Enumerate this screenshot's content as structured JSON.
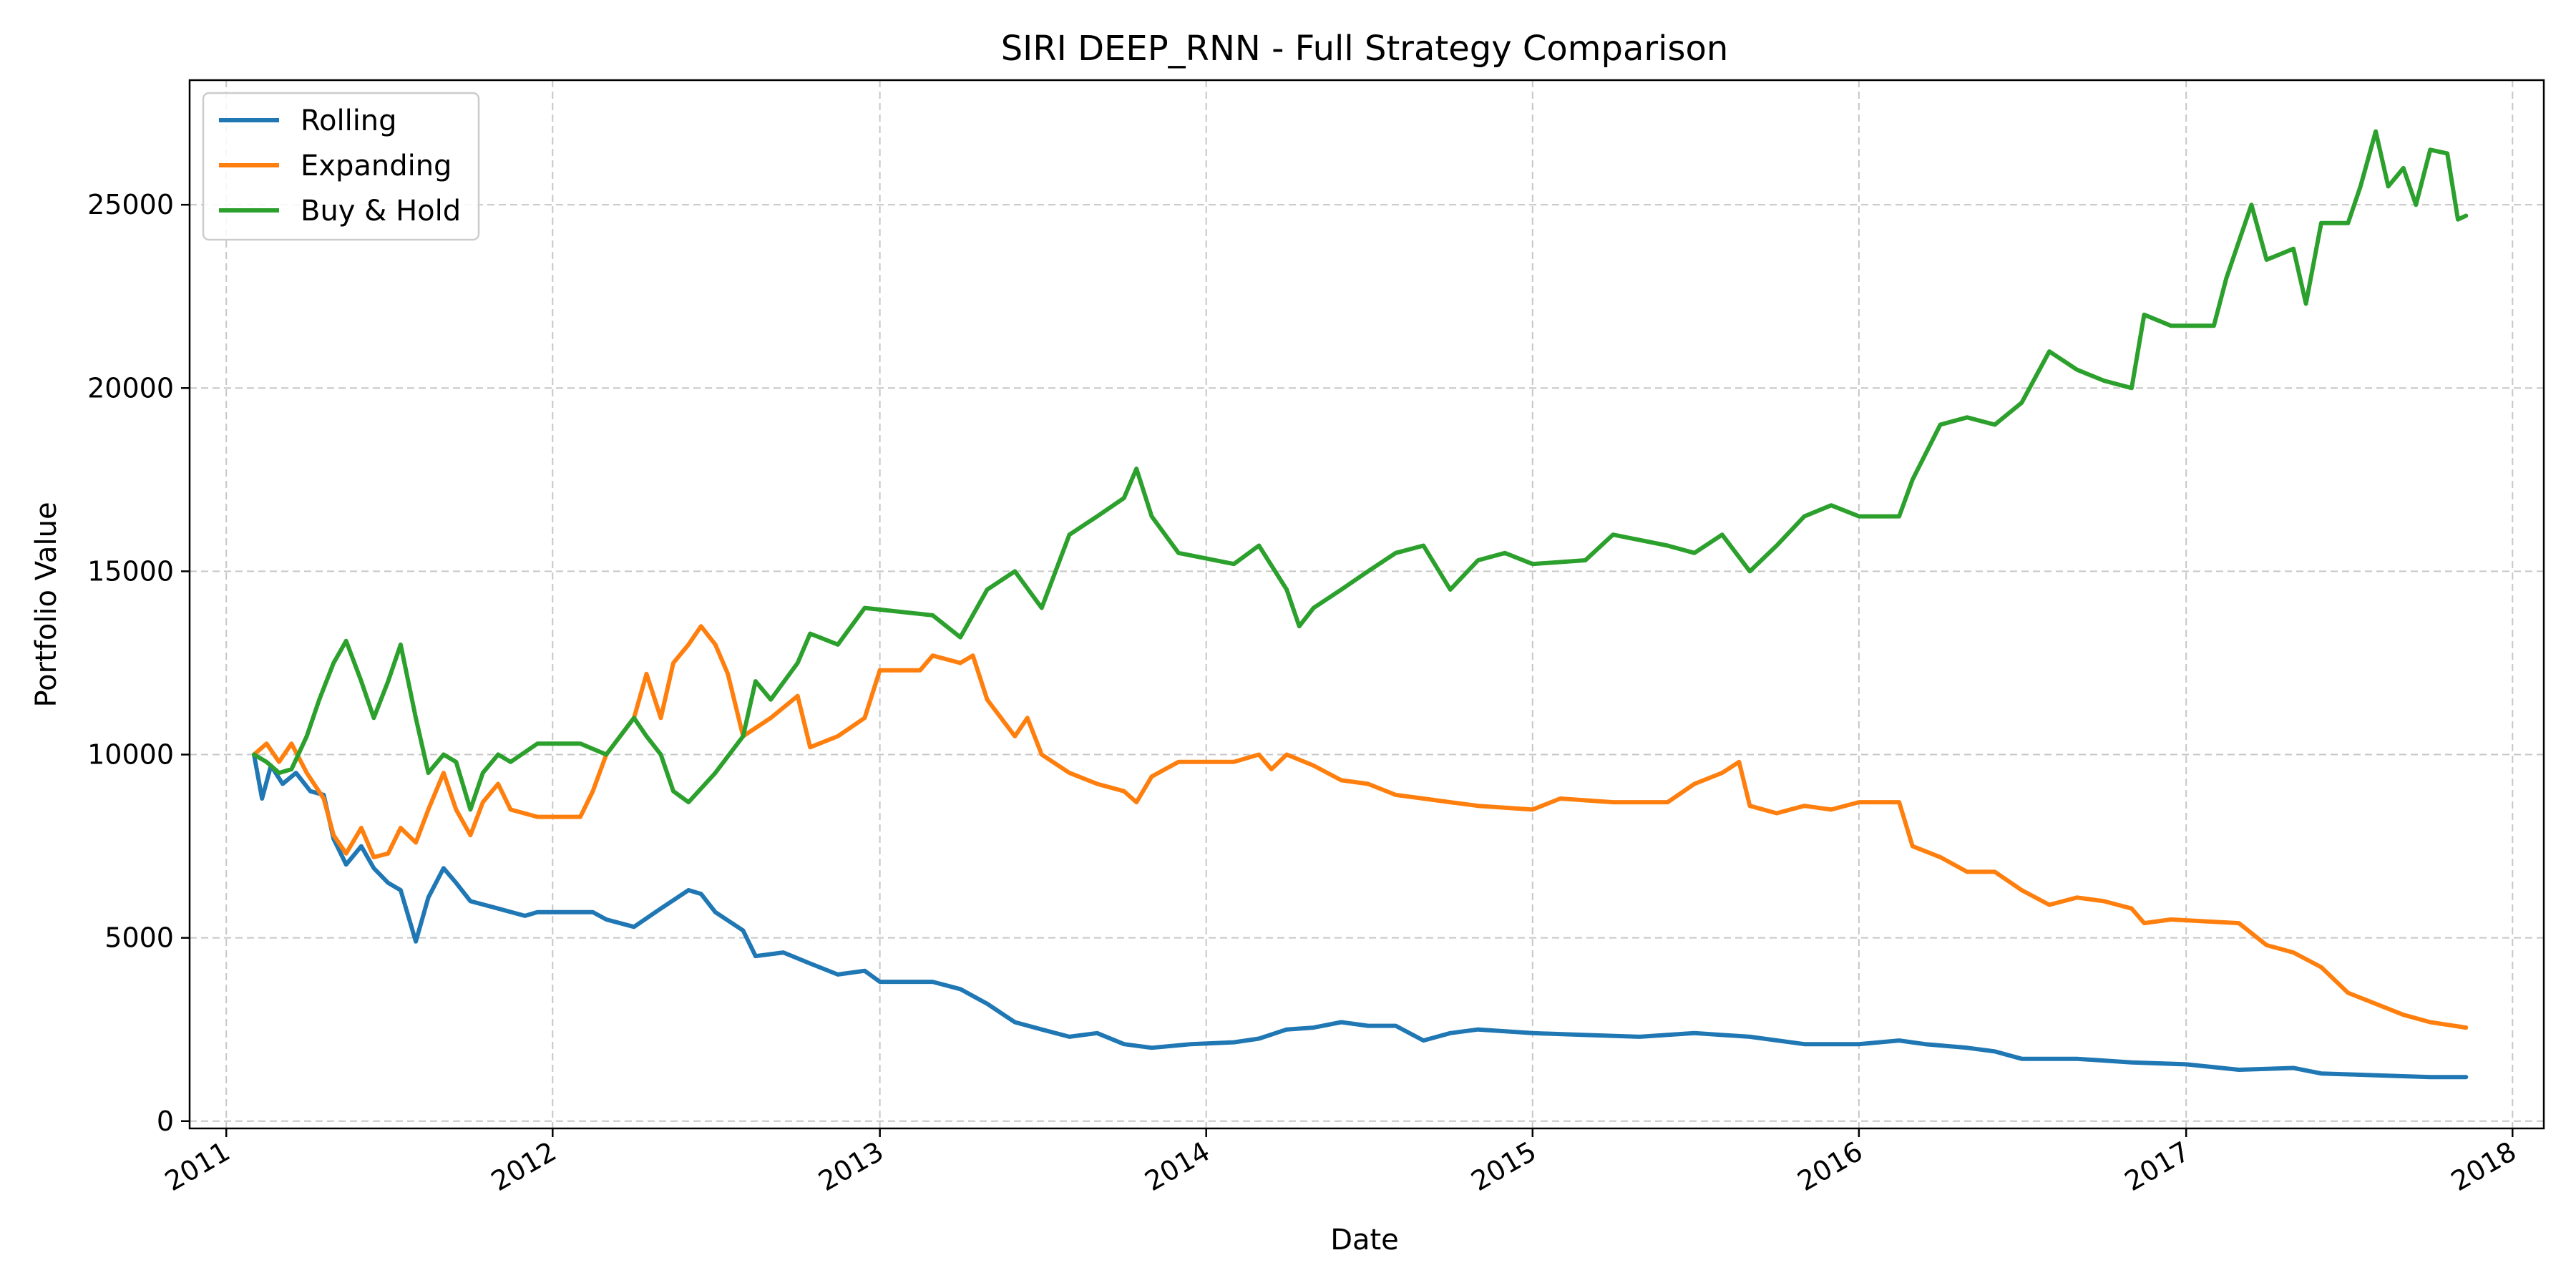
{
  "chart_data": {
    "type": "line",
    "title": "SIRI DEEP_RNN - Full Strategy Comparison",
    "xlabel": "Date",
    "ylabel": "Portfolio Value",
    "x_tick_labels": [
      "2011",
      "2012",
      "2013",
      "2014",
      "2015",
      "2016",
      "2017",
      "2018"
    ],
    "y_tick_labels": [
      "0",
      "5000",
      "10000",
      "15000",
      "20000",
      "25000"
    ],
    "y_ticks": [
      0,
      5000,
      10000,
      15000,
      20000,
      25000
    ],
    "xlim": [
      "2010-11-21",
      "2018-02-05"
    ],
    "ylim": [
      -200,
      28400
    ],
    "grid": true,
    "legend_position": "top-left",
    "series": [
      {
        "name": "Rolling",
        "color": "#1f77b4",
        "points": [
          [
            "2011-02-01",
            10000
          ],
          [
            "2011-02-10",
            8800
          ],
          [
            "2011-02-20",
            9700
          ],
          [
            "2011-03-05",
            9200
          ],
          [
            "2011-03-20",
            9500
          ],
          [
            "2011-04-05",
            9000
          ],
          [
            "2011-04-20",
            8900
          ],
          [
            "2011-05-01",
            7700
          ],
          [
            "2011-05-15",
            7000
          ],
          [
            "2011-06-01",
            7500
          ],
          [
            "2011-06-15",
            6900
          ],
          [
            "2011-07-01",
            6500
          ],
          [
            "2011-07-15",
            6300
          ],
          [
            "2011-08-01",
            4900
          ],
          [
            "2011-08-15",
            6100
          ],
          [
            "2011-09-01",
            6900
          ],
          [
            "2011-09-15",
            6500
          ],
          [
            "2011-10-01",
            6000
          ],
          [
            "2011-11-01",
            5800
          ],
          [
            "2011-12-01",
            5600
          ],
          [
            "2011-12-15",
            5700
          ],
          [
            "2012-02-15",
            5700
          ],
          [
            "2012-03-01",
            5500
          ],
          [
            "2012-04-01",
            5300
          ],
          [
            "2012-05-01",
            5800
          ],
          [
            "2012-06-01",
            6300
          ],
          [
            "2012-06-15",
            6200
          ],
          [
            "2012-07-01",
            5700
          ],
          [
            "2012-08-01",
            5200
          ],
          [
            "2012-08-15",
            4500
          ],
          [
            "2012-09-15",
            4600
          ],
          [
            "2012-10-15",
            4300
          ],
          [
            "2012-11-15",
            4000
          ],
          [
            "2012-12-15",
            4100
          ],
          [
            "2013-01-01",
            3800
          ],
          [
            "2013-03-01",
            3800
          ],
          [
            "2013-04-01",
            3600
          ],
          [
            "2013-05-01",
            3200
          ],
          [
            "2013-06-01",
            2700
          ],
          [
            "2013-07-01",
            2500
          ],
          [
            "2013-08-01",
            2300
          ],
          [
            "2013-09-01",
            2400
          ],
          [
            "2013-10-01",
            2100
          ],
          [
            "2013-11-01",
            2000
          ],
          [
            "2013-12-15",
            2100
          ],
          [
            "2014-02-01",
            2150
          ],
          [
            "2014-03-01",
            2250
          ],
          [
            "2014-04-01",
            2500
          ],
          [
            "2014-05-01",
            2550
          ],
          [
            "2014-06-01",
            2700
          ],
          [
            "2014-07-01",
            2600
          ],
          [
            "2014-08-01",
            2600
          ],
          [
            "2014-09-01",
            2200
          ],
          [
            "2014-10-01",
            2400
          ],
          [
            "2014-11-01",
            2500
          ],
          [
            "2015-01-01",
            2400
          ],
          [
            "2015-03-01",
            2350
          ],
          [
            "2015-05-01",
            2300
          ],
          [
            "2015-07-01",
            2400
          ],
          [
            "2015-09-01",
            2300
          ],
          [
            "2015-11-01",
            2100
          ],
          [
            "2016-01-01",
            2100
          ],
          [
            "2016-02-15",
            2200
          ],
          [
            "2016-03-15",
            2100
          ],
          [
            "2016-05-01",
            2000
          ],
          [
            "2016-06-01",
            1900
          ],
          [
            "2016-07-01",
            1700
          ],
          [
            "2016-09-01",
            1700
          ],
          [
            "2016-11-01",
            1600
          ],
          [
            "2017-01-01",
            1550
          ],
          [
            "2017-03-01",
            1400
          ],
          [
            "2017-05-01",
            1450
          ],
          [
            "2017-06-01",
            1300
          ],
          [
            "2017-08-01",
            1250
          ],
          [
            "2017-10-01",
            1200
          ],
          [
            "2017-11-10",
            1200
          ]
        ]
      },
      {
        "name": "Expanding",
        "color": "#ff7f0e",
        "points": [
          [
            "2011-02-01",
            10000
          ],
          [
            "2011-02-15",
            10300
          ],
          [
            "2011-03-01",
            9800
          ],
          [
            "2011-03-15",
            10300
          ],
          [
            "2011-04-01",
            9500
          ],
          [
            "2011-04-20",
            8800
          ],
          [
            "2011-05-01",
            7800
          ],
          [
            "2011-05-15",
            7300
          ],
          [
            "2011-06-01",
            8000
          ],
          [
            "2011-06-15",
            7200
          ],
          [
            "2011-07-01",
            7300
          ],
          [
            "2011-07-15",
            8000
          ],
          [
            "2011-08-01",
            7600
          ],
          [
            "2011-08-15",
            8500
          ],
          [
            "2011-09-01",
            9500
          ],
          [
            "2011-09-15",
            8500
          ],
          [
            "2011-10-01",
            7800
          ],
          [
            "2011-10-15",
            8700
          ],
          [
            "2011-11-01",
            9200
          ],
          [
            "2011-11-15",
            8500
          ],
          [
            "2011-12-15",
            8300
          ],
          [
            "2012-02-01",
            8300
          ],
          [
            "2012-02-15",
            9000
          ],
          [
            "2012-03-01",
            10000
          ],
          [
            "2012-04-01",
            11000
          ],
          [
            "2012-04-15",
            12200
          ],
          [
            "2012-05-01",
            11000
          ],
          [
            "2012-05-15",
            12500
          ],
          [
            "2012-06-01",
            13000
          ],
          [
            "2012-06-15",
            13500
          ],
          [
            "2012-07-01",
            13000
          ],
          [
            "2012-07-15",
            12200
          ],
          [
            "2012-08-01",
            10500
          ],
          [
            "2012-09-01",
            11000
          ],
          [
            "2012-10-01",
            11600
          ],
          [
            "2012-10-15",
            10200
          ],
          [
            "2012-11-15",
            10500
          ],
          [
            "2012-12-15",
            11000
          ],
          [
            "2013-01-01",
            12300
          ],
          [
            "2013-02-15",
            12300
          ],
          [
            "2013-03-01",
            12700
          ],
          [
            "2013-04-01",
            12500
          ],
          [
            "2013-04-15",
            12700
          ],
          [
            "2013-05-01",
            11500
          ],
          [
            "2013-06-01",
            10500
          ],
          [
            "2013-06-15",
            11000
          ],
          [
            "2013-07-01",
            10000
          ],
          [
            "2013-08-01",
            9500
          ],
          [
            "2013-09-01",
            9200
          ],
          [
            "2013-10-01",
            9000
          ],
          [
            "2013-10-15",
            8700
          ],
          [
            "2013-11-01",
            9400
          ],
          [
            "2013-12-01",
            9800
          ],
          [
            "2014-02-01",
            9800
          ],
          [
            "2014-03-01",
            10000
          ],
          [
            "2014-03-15",
            9600
          ],
          [
            "2014-04-01",
            10000
          ],
          [
            "2014-05-01",
            9700
          ],
          [
            "2014-06-01",
            9300
          ],
          [
            "2014-07-01",
            9200
          ],
          [
            "2014-08-01",
            8900
          ],
          [
            "2014-09-01",
            8800
          ],
          [
            "2014-10-01",
            8700
          ],
          [
            "2014-11-01",
            8600
          ],
          [
            "2015-01-01",
            8500
          ],
          [
            "2015-02-01",
            8800
          ],
          [
            "2015-04-01",
            8700
          ],
          [
            "2015-06-01",
            8700
          ],
          [
            "2015-07-01",
            9200
          ],
          [
            "2015-08-01",
            9500
          ],
          [
            "2015-08-20",
            9800
          ],
          [
            "2015-09-01",
            8600
          ],
          [
            "2015-10-01",
            8400
          ],
          [
            "2015-11-01",
            8600
          ],
          [
            "2015-12-01",
            8500
          ],
          [
            "2016-01-01",
            8700
          ],
          [
            "2016-02-15",
            8700
          ],
          [
            "2016-03-01",
            7500
          ],
          [
            "2016-04-01",
            7200
          ],
          [
            "2016-05-01",
            6800
          ],
          [
            "2016-06-01",
            6800
          ],
          [
            "2016-07-01",
            6300
          ],
          [
            "2016-08-01",
            5900
          ],
          [
            "2016-09-01",
            6100
          ],
          [
            "2016-10-01",
            6000
          ],
          [
            "2016-11-01",
            5800
          ],
          [
            "2016-11-15",
            5400
          ],
          [
            "2016-12-15",
            5500
          ],
          [
            "2017-03-01",
            5400
          ],
          [
            "2017-04-01",
            4800
          ],
          [
            "2017-05-01",
            4600
          ],
          [
            "2017-06-01",
            4200
          ],
          [
            "2017-07-01",
            3500
          ],
          [
            "2017-08-01",
            3200
          ],
          [
            "2017-09-01",
            2900
          ],
          [
            "2017-10-01",
            2700
          ],
          [
            "2017-11-10",
            2550
          ]
        ]
      },
      {
        "name": "Buy & Hold",
        "color": "#2ca02c",
        "points": [
          [
            "2011-02-01",
            10000
          ],
          [
            "2011-02-15",
            9800
          ],
          [
            "2011-03-01",
            9500
          ],
          [
            "2011-03-15",
            9600
          ],
          [
            "2011-04-01",
            10500
          ],
          [
            "2011-04-15",
            11500
          ],
          [
            "2011-05-01",
            12500
          ],
          [
            "2011-05-15",
            13100
          ],
          [
            "2011-06-01",
            12000
          ],
          [
            "2011-06-15",
            11000
          ],
          [
            "2011-07-01",
            12000
          ],
          [
            "2011-07-15",
            13000
          ],
          [
            "2011-08-01",
            11000
          ],
          [
            "2011-08-15",
            9500
          ],
          [
            "2011-09-01",
            10000
          ],
          [
            "2011-09-15",
            9800
          ],
          [
            "2011-10-01",
            8500
          ],
          [
            "2011-10-15",
            9500
          ],
          [
            "2011-11-01",
            10000
          ],
          [
            "2011-11-15",
            9800
          ],
          [
            "2011-12-15",
            10300
          ],
          [
            "2012-02-01",
            10300
          ],
          [
            "2012-03-01",
            10000
          ],
          [
            "2012-04-01",
            11000
          ],
          [
            "2012-04-15",
            10500
          ],
          [
            "2012-05-01",
            10000
          ],
          [
            "2012-05-15",
            9000
          ],
          [
            "2012-06-01",
            8700
          ],
          [
            "2012-07-01",
            9500
          ],
          [
            "2012-08-01",
            10500
          ],
          [
            "2012-08-15",
            12000
          ],
          [
            "2012-09-01",
            11500
          ],
          [
            "2012-10-01",
            12500
          ],
          [
            "2012-10-15",
            13300
          ],
          [
            "2012-11-15",
            13000
          ],
          [
            "2012-12-15",
            14000
          ],
          [
            "2013-03-01",
            13800
          ],
          [
            "2013-04-01",
            13200
          ],
          [
            "2013-05-01",
            14500
          ],
          [
            "2013-06-01",
            15000
          ],
          [
            "2013-07-01",
            14000
          ],
          [
            "2013-08-01",
            16000
          ],
          [
            "2013-09-01",
            16500
          ],
          [
            "2013-10-01",
            17000
          ],
          [
            "2013-10-15",
            17800
          ],
          [
            "2013-11-01",
            16500
          ],
          [
            "2013-12-01",
            15500
          ],
          [
            "2014-02-01",
            15200
          ],
          [
            "2014-03-01",
            15700
          ],
          [
            "2014-04-01",
            14500
          ],
          [
            "2014-04-15",
            13500
          ],
          [
            "2014-05-01",
            14000
          ],
          [
            "2014-06-01",
            14500
          ],
          [
            "2014-07-01",
            15000
          ],
          [
            "2014-08-01",
            15500
          ],
          [
            "2014-09-01",
            15700
          ],
          [
            "2014-10-01",
            14500
          ],
          [
            "2014-11-01",
            15300
          ],
          [
            "2014-12-01",
            15500
          ],
          [
            "2015-01-01",
            15200
          ],
          [
            "2015-03-01",
            15300
          ],
          [
            "2015-04-01",
            16000
          ],
          [
            "2015-06-01",
            15700
          ],
          [
            "2015-07-01",
            15500
          ],
          [
            "2015-08-01",
            16000
          ],
          [
            "2015-09-01",
            15000
          ],
          [
            "2015-10-01",
            15700
          ],
          [
            "2015-11-01",
            16500
          ],
          [
            "2015-12-01",
            16800
          ],
          [
            "2016-01-01",
            16500
          ],
          [
            "2016-02-15",
            16500
          ],
          [
            "2016-03-01",
            17500
          ],
          [
            "2016-04-01",
            19000
          ],
          [
            "2016-05-01",
            19200
          ],
          [
            "2016-06-01",
            19000
          ],
          [
            "2016-07-01",
            19600
          ],
          [
            "2016-08-01",
            21000
          ],
          [
            "2016-09-01",
            20500
          ],
          [
            "2016-10-01",
            20200
          ],
          [
            "2016-11-01",
            20000
          ],
          [
            "2016-11-15",
            22000
          ],
          [
            "2016-12-15",
            21700
          ],
          [
            "2017-02-01",
            21700
          ],
          [
            "2017-02-15",
            23000
          ],
          [
            "2017-03-01",
            24000
          ],
          [
            "2017-03-15",
            25000
          ],
          [
            "2017-04-01",
            23500
          ],
          [
            "2017-05-01",
            23800
          ],
          [
            "2017-05-15",
            22300
          ],
          [
            "2017-06-01",
            24500
          ],
          [
            "2017-07-01",
            24500
          ],
          [
            "2017-07-15",
            25500
          ],
          [
            "2017-08-01",
            27000
          ],
          [
            "2017-08-15",
            25500
          ],
          [
            "2017-09-01",
            26000
          ],
          [
            "2017-09-15",
            25000
          ],
          [
            "2017-10-01",
            26500
          ],
          [
            "2017-10-20",
            26400
          ],
          [
            "2017-11-01",
            24600
          ],
          [
            "2017-11-10",
            24700
          ]
        ]
      }
    ]
  }
}
